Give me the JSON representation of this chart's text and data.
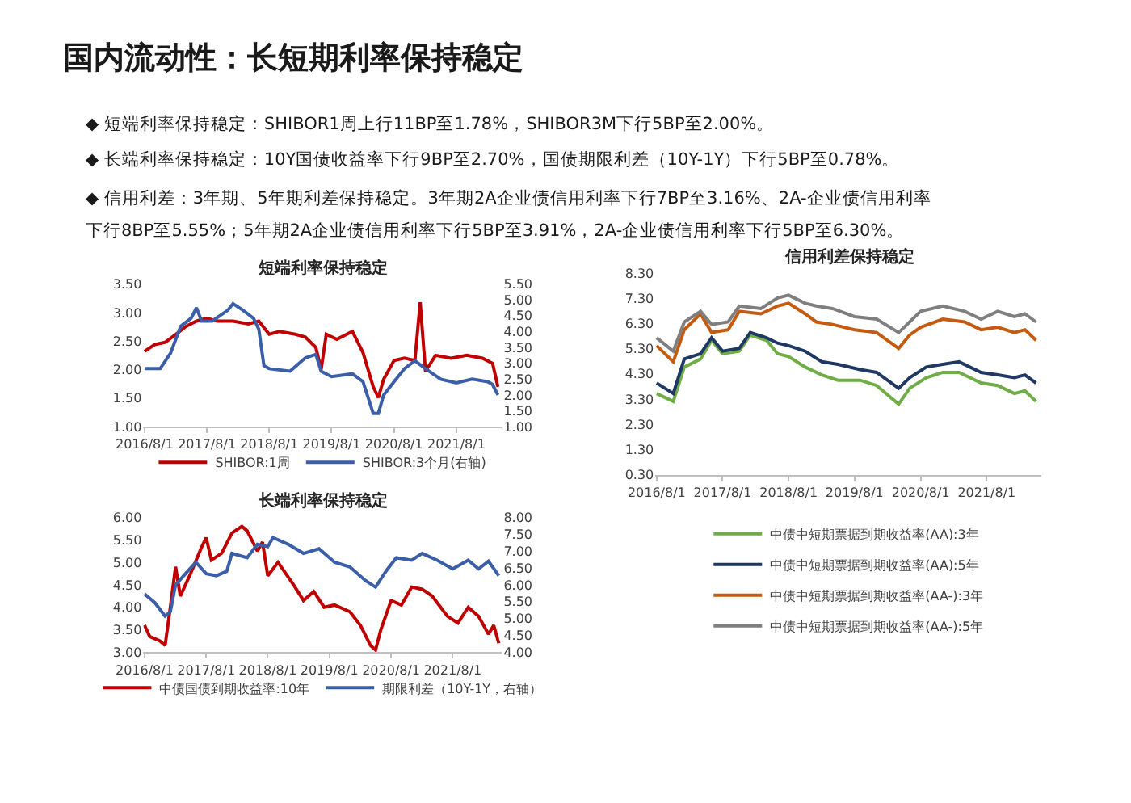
{
  "chart_data": [
    {
      "type": "other",
      "title": "国内流动性：长短期利率保持稳定",
      "annotations": [
        "◆ 短端利率保持稳定：SHIBOR1周上行11BP至1.78%，SHIBOR3M下行5BP至2.00%。",
        "◆ 长端利率保持稳定：10Y国债收益率下行9BP至2.70%，国债期限利差（10Y-1Y）下行5BP至0.78%。",
        "◆ 信用利差：3年期、5年期利差保持稳定。3年期2A企业债信用利率下行7BP至3.16%、2A-企业债信用利率",
        "下行8BP至5.55%；5年期2A企业债信用利率下行5BP至3.91%，2A-企业债信用利率下行5BP至6.30%。"
      ]
    },
    {
      "type": "line",
      "title": "短端利率保持稳定",
      "legend": "bottom",
      "xlim": [
        "2016-07-25",
        "2022-04-25"
      ],
      "xticks": [
        {
          "value": "2016-08-01",
          "label": "2016/8/1"
        },
        {
          "value": "2017-08-01",
          "label": "2017/8/1"
        },
        {
          "value": "2018-08-01",
          "label": "2018/8/1"
        },
        {
          "value": "2019-08-01",
          "label": "2019/8/1"
        },
        {
          "value": "2020-08-01",
          "label": "2020/8/1"
        },
        {
          "value": "2021-08-01",
          "label": "2021/8/1"
        }
      ],
      "ylim": [
        1,
        3.5
      ],
      "yticks": [
        {
          "value": 1,
          "label": "1.00"
        },
        {
          "value": 1.5,
          "label": "1.50"
        },
        {
          "value": 2,
          "label": "2.00"
        },
        {
          "value": 2.5,
          "label": "2.50"
        },
        {
          "value": 3,
          "label": "3.00"
        },
        {
          "value": 3.5,
          "label": "3.50"
        }
      ],
      "y2lim": [
        1,
        5.5
      ],
      "y2ticks": [
        {
          "value": 1,
          "label": "1.00"
        },
        {
          "value": 1.5,
          "label": "1.50"
        },
        {
          "value": 2,
          "label": "2.00"
        },
        {
          "value": 2.5,
          "label": "2.50"
        },
        {
          "value": 3,
          "label": "3.00"
        },
        {
          "value": 3.5,
          "label": "3.50"
        },
        {
          "value": 4,
          "label": "4.00"
        },
        {
          "value": 4.5,
          "label": "4.50"
        },
        {
          "value": 5,
          "label": "5.00"
        },
        {
          "value": 5.5,
          "label": "5.50"
        }
      ],
      "series": [
        {
          "name": "SHIBOR:1周",
          "color": "#c00000",
          "x": [
            "2016-08",
            "2016-10",
            "2016-12",
            "2017-02",
            "2017-04",
            "2017-06",
            "2017-08",
            "2017-10",
            "2018-01",
            "2018-04",
            "2018-06",
            "2018-08",
            "2018-10",
            "2019-01",
            "2019-03",
            "2019-05",
            "2019-06",
            "2019-07",
            "2019-09",
            "2019-12",
            "2020-02",
            "2020-04",
            "2020-05",
            "2020-06",
            "2020-08",
            "2020-10",
            "2020-12",
            "2021-01",
            "2021-02",
            "2021-04",
            "2021-07",
            "2021-10",
            "2022-01",
            "2022-03",
            "2022-04"
          ],
          "values": [
            2.32,
            2.44,
            2.48,
            2.62,
            2.76,
            2.85,
            2.9,
            2.85,
            2.85,
            2.8,
            2.85,
            2.62,
            2.67,
            2.62,
            2.57,
            2.39,
            2.0,
            2.62,
            2.53,
            2.67,
            2.3,
            1.7,
            1.51,
            1.83,
            2.16,
            2.2,
            2.16,
            3.18,
            1.97,
            2.25,
            2.2,
            2.25,
            2.2,
            2.11,
            1.7
          ]
        },
        {
          "name": "SHIBOR:3个月(右轴)",
          "color": "#3a5ea8",
          "axis": "y2",
          "x": [
            "2016-08",
            "2016-11",
            "2017-01",
            "2017-03",
            "2017-05",
            "2017-06",
            "2017-07",
            "2017-09",
            "2017-12",
            "2018-01",
            "2018-03",
            "2018-05",
            "2018-06",
            "2018-07",
            "2018-08",
            "2018-12",
            "2019-03",
            "2019-05",
            "2019-06",
            "2019-08",
            "2019-12",
            "2020-02",
            "2020-04",
            "2020-05",
            "2020-06",
            "2020-08",
            "2020-10",
            "2020-12",
            "2021-02",
            "2021-05",
            "2021-08",
            "2021-11",
            "2022-02",
            "2022-03",
            "2022-04"
          ],
          "values": [
            2.83,
            2.83,
            3.33,
            4.17,
            4.42,
            4.75,
            4.33,
            4.33,
            4.67,
            4.88,
            4.67,
            4.42,
            4.08,
            2.92,
            2.83,
            2.75,
            3.17,
            3.28,
            2.75,
            2.58,
            2.67,
            2.42,
            1.42,
            1.42,
            2.0,
            2.42,
            2.83,
            3.08,
            2.83,
            2.5,
            2.38,
            2.5,
            2.42,
            2.33,
            2.0
          ]
        }
      ]
    },
    {
      "type": "line",
      "title": "长端利率保持稳定",
      "legend": "bottom",
      "xlim": [
        "2016-07-25",
        "2022-05-20"
      ],
      "xticks": [
        {
          "value": "2016-08-01",
          "label": "2016/8/1"
        },
        {
          "value": "2017-08-01",
          "label": "2017/8/1"
        },
        {
          "value": "2018-08-01",
          "label": "2018/8/1"
        },
        {
          "value": "2019-08-01",
          "label": "2019/8/1"
        },
        {
          "value": "2020-08-01",
          "label": "2020/8/1"
        },
        {
          "value": "2021-08-01",
          "label": "2021/8/1"
        }
      ],
      "ylim": [
        3,
        6
      ],
      "yticks": [
        {
          "value": 3,
          "label": "3.00"
        },
        {
          "value": 3.5,
          "label": "3.50"
        },
        {
          "value": 4,
          "label": "4.00"
        },
        {
          "value": 4.5,
          "label": "4.50"
        },
        {
          "value": 5,
          "label": "5.00"
        },
        {
          "value": 5.5,
          "label": "5.50"
        },
        {
          "value": 6,
          "label": "6.00"
        }
      ],
      "y2lim": [
        4,
        8
      ],
      "y2ticks": [
        {
          "value": 4,
          "label": "4.00"
        },
        {
          "value": 4.5,
          "label": "4.50"
        },
        {
          "value": 5,
          "label": "5.00"
        },
        {
          "value": 5.5,
          "label": "5.50"
        },
        {
          "value": 6,
          "label": "6.00"
        },
        {
          "value": 6.5,
          "label": "6.50"
        },
        {
          "value": 7,
          "label": "7.00"
        },
        {
          "value": 7.5,
          "label": "7.50"
        },
        {
          "value": 8,
          "label": "8.00"
        }
      ],
      "series": [
        {
          "name": "中债国债到期收益率:10年",
          "color": "#c00000",
          "x": [
            "2016-08",
            "2016-09",
            "2016-11",
            "2016-12",
            "2017-01",
            "2017-02",
            "2017-03",
            "2017-05",
            "2017-07",
            "2017-08",
            "2017-09",
            "2017-11",
            "2018-01",
            "2018-03",
            "2018-04",
            "2018-06",
            "2018-07",
            "2018-08",
            "2018-10",
            "2019-01",
            "2019-03",
            "2019-05",
            "2019-07",
            "2019-09",
            "2019-12",
            "2020-02",
            "2020-04",
            "2020-05",
            "2020-06",
            "2020-08",
            "2020-10",
            "2020-12",
            "2021-02",
            "2021-04",
            "2021-07",
            "2021-09",
            "2021-11",
            "2022-01",
            "2022-03",
            "2022-04",
            "2022-05"
          ],
          "values": [
            3.6,
            3.35,
            3.25,
            3.15,
            4.0,
            4.9,
            4.25,
            4.75,
            5.3,
            5.55,
            5.05,
            5.2,
            5.65,
            5.8,
            5.7,
            5.25,
            5.45,
            4.7,
            5.0,
            4.5,
            4.15,
            4.35,
            4.0,
            4.05,
            3.9,
            3.6,
            3.15,
            3.05,
            3.5,
            4.15,
            4.05,
            4.45,
            4.4,
            4.25,
            3.8,
            3.65,
            4.0,
            3.8,
            3.4,
            3.6,
            3.2
          ]
        },
        {
          "name": "期限利差（10Y-1Y，右轴）",
          "color": "#3a5ea8",
          "axis": "y2",
          "x": [
            "2016-08",
            "2016-10",
            "2016-12",
            "2017-01",
            "2017-02",
            "2017-04",
            "2017-06",
            "2017-08",
            "2017-10",
            "2017-12",
            "2018-01",
            "2018-04",
            "2018-06",
            "2018-08",
            "2018-09",
            "2018-12",
            "2019-03",
            "2019-06",
            "2019-09",
            "2019-12",
            "2020-03",
            "2020-05",
            "2020-07",
            "2020-09",
            "2020-12",
            "2021-02",
            "2021-05",
            "2021-08",
            "2021-11",
            "2022-01",
            "2022-03",
            "2022-05"
          ],
          "values": [
            5.73,
            5.47,
            5.07,
            5.2,
            6.0,
            6.33,
            6.67,
            6.33,
            6.27,
            6.4,
            6.93,
            6.8,
            7.2,
            7.13,
            7.4,
            7.2,
            6.93,
            7.07,
            6.67,
            6.53,
            6.13,
            5.93,
            6.4,
            6.8,
            6.73,
            6.93,
            6.73,
            6.47,
            6.73,
            6.47,
            6.7,
            6.27
          ]
        }
      ]
    },
    {
      "type": "line",
      "title": "信用利差保持稳定",
      "legend": "bottom",
      "xlim": [
        "2016-07-25",
        "2022-06-01"
      ],
      "xticks": [
        {
          "value": "2016-08-01",
          "label": "2016/8/1"
        },
        {
          "value": "2017-08-01",
          "label": "2017/8/1"
        },
        {
          "value": "2018-08-01",
          "label": "2018/8/1"
        },
        {
          "value": "2019-08-01",
          "label": "2019/8/1"
        },
        {
          "value": "2020-08-01",
          "label": "2020/8/1"
        },
        {
          "value": "2021-08-01",
          "label": "2021/8/1"
        }
      ],
      "ylim": [
        0.3,
        8.3
      ],
      "yticks": [
        {
          "value": 0.3,
          "label": "0.30"
        },
        {
          "value": 1.3,
          "label": "1.30"
        },
        {
          "value": 2.3,
          "label": "2.30"
        },
        {
          "value": 3.3,
          "label": "3.30"
        },
        {
          "value": 4.3,
          "label": "4.30"
        },
        {
          "value": 5.3,
          "label": "5.30"
        },
        {
          "value": 6.3,
          "label": "6.30"
        },
        {
          "value": 7.3,
          "label": "7.30"
        },
        {
          "value": 8.3,
          "label": "8.30"
        }
      ],
      "series": [
        {
          "name": "中债中短期票据到期收益率(AA):3年",
          "color": "#70ad47",
          "x": [
            "2016-08",
            "2016-11",
            "2017-01",
            "2017-04",
            "2017-06",
            "2017-08",
            "2017-11",
            "2018-01",
            "2018-04",
            "2018-06",
            "2018-08",
            "2018-11",
            "2019-02",
            "2019-05",
            "2019-09",
            "2019-12",
            "2020-04",
            "2020-06",
            "2020-09",
            "2020-12",
            "2021-03",
            "2021-07",
            "2021-10",
            "2022-01",
            "2022-03",
            "2022-05"
          ],
          "values": [
            3.52,
            3.21,
            4.57,
            4.89,
            5.63,
            5.1,
            5.2,
            5.84,
            5.63,
            5.1,
            4.99,
            4.57,
            4.26,
            4.05,
            4.05,
            3.84,
            3.1,
            3.73,
            4.15,
            4.36,
            4.36,
            3.94,
            3.84,
            3.52,
            3.63,
            3.21
          ]
        },
        {
          "name": "中债中短期票据到期收益率(AA):5年",
          "color": "#203864",
          "x": [
            "2016-08",
            "2016-11",
            "2017-01",
            "2017-04",
            "2017-06",
            "2017-08",
            "2017-11",
            "2018-01",
            "2018-04",
            "2018-06",
            "2018-08",
            "2018-11",
            "2019-02",
            "2019-05",
            "2019-09",
            "2019-12",
            "2020-04",
            "2020-06",
            "2020-09",
            "2020-12",
            "2021-03",
            "2021-07",
            "2021-10",
            "2022-01",
            "2022-03",
            "2022-05"
          ],
          "values": [
            3.94,
            3.52,
            4.89,
            5.1,
            5.73,
            5.2,
            5.31,
            5.94,
            5.73,
            5.52,
            5.42,
            5.2,
            4.78,
            4.68,
            4.47,
            4.36,
            3.73,
            4.15,
            4.57,
            4.68,
            4.78,
            4.36,
            4.26,
            4.15,
            4.26,
            3.94
          ]
        },
        {
          "name": "中债中短期票据到期收益率(AA-):3年",
          "color": "#c55a11",
          "x": [
            "2016-08",
            "2016-11",
            "2017-01",
            "2017-04",
            "2017-06",
            "2017-09",
            "2017-11",
            "2018-03",
            "2018-06",
            "2018-08",
            "2018-11",
            "2019-01",
            "2019-04",
            "2019-08",
            "2019-12",
            "2020-04",
            "2020-06",
            "2020-08",
            "2020-12",
            "2021-04",
            "2021-07",
            "2021-10",
            "2022-01",
            "2022-03",
            "2022-05"
          ],
          "values": [
            5.42,
            4.78,
            6.05,
            6.68,
            5.94,
            6.05,
            6.78,
            6.68,
            6.99,
            7.1,
            6.68,
            6.36,
            6.26,
            6.05,
            5.94,
            5.31,
            5.84,
            6.15,
            6.47,
            6.36,
            6.05,
            6.15,
            5.94,
            6.05,
            5.63
          ]
        },
        {
          "name": "中债中短期票据到期收益率(AA-):5年",
          "color": "#7f7f7f",
          "x": [
            "2016-08",
            "2016-11",
            "2017-01",
            "2017-04",
            "2017-06",
            "2017-09",
            "2017-11",
            "2018-03",
            "2018-06",
            "2018-08",
            "2018-11",
            "2019-01",
            "2019-04",
            "2019-08",
            "2019-12",
            "2020-04",
            "2020-06",
            "2020-08",
            "2020-12",
            "2021-04",
            "2021-07",
            "2021-10",
            "2022-01",
            "2022-03",
            "2022-05"
          ],
          "values": [
            5.73,
            5.2,
            6.36,
            6.78,
            6.26,
            6.36,
            6.99,
            6.89,
            7.31,
            7.42,
            7.1,
            6.99,
            6.89,
            6.57,
            6.47,
            5.94,
            6.36,
            6.78,
            6.99,
            6.78,
            6.47,
            6.78,
            6.57,
            6.68,
            6.36
          ]
        }
      ]
    }
  ]
}
